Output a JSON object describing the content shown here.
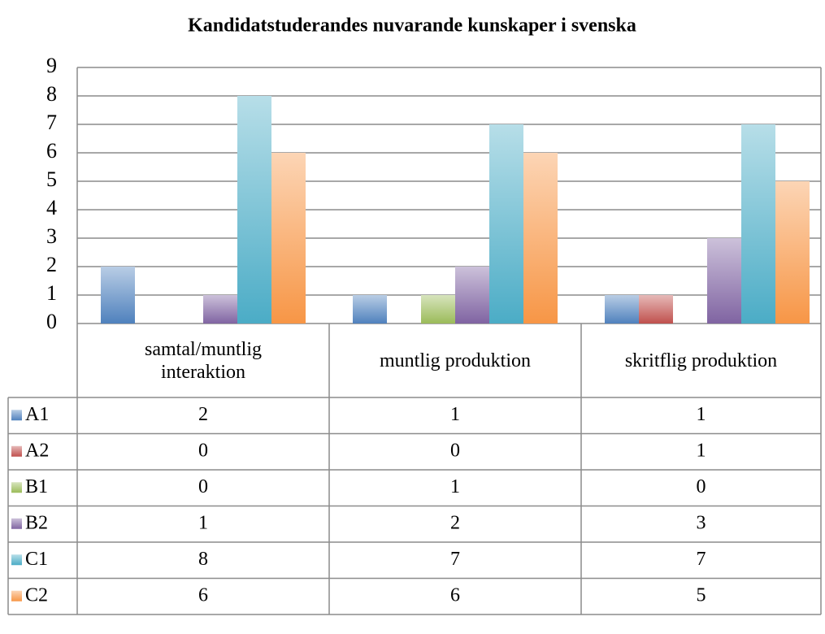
{
  "chart_data": {
    "type": "bar",
    "title": "Kandidatstuderandes nuvarande kunskaper i svenska",
    "categories": [
      "samtal/muntlig interaktion",
      "muntlig produktion",
      "skritflig produktion"
    ],
    "series": [
      {
        "name": "A1",
        "color": "#4f81bd",
        "values": [
          2,
          1,
          1
        ]
      },
      {
        "name": "A2",
        "color": "#c0504d",
        "values": [
          0,
          0,
          1
        ]
      },
      {
        "name": "B1",
        "color": "#9bbb59",
        "values": [
          0,
          1,
          0
        ]
      },
      {
        "name": "B2",
        "color": "#8064a2",
        "values": [
          1,
          2,
          3
        ]
      },
      {
        "name": "C1",
        "color": "#4bacc6",
        "values": [
          8,
          7,
          7
        ]
      },
      {
        "name": "C2",
        "color": "#f79646",
        "values": [
          6,
          6,
          5
        ]
      }
    ],
    "ylim": [
      0,
      9
    ],
    "yticks": [
      0,
      1,
      2,
      3,
      4,
      5,
      6,
      7,
      8,
      9
    ],
    "grid": true,
    "legend": "table"
  }
}
